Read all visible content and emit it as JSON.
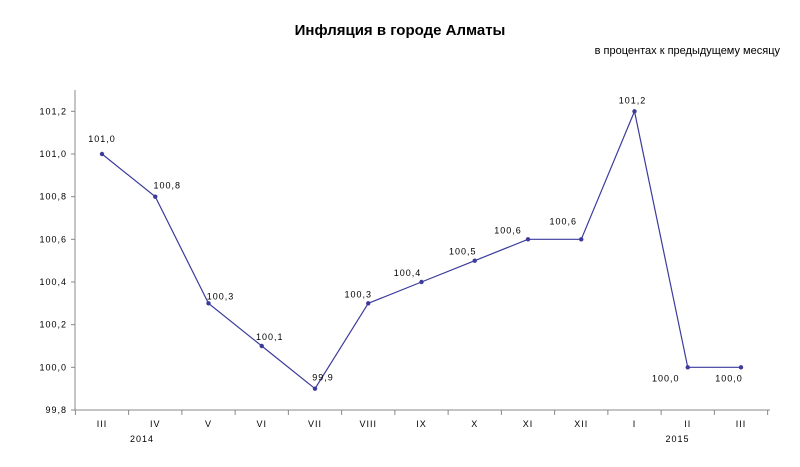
{
  "chart_data": {
    "type": "line",
    "title": "Инфляция в городе Алматы",
    "subtitle": "в процентах к предыдущему месяцу",
    "categories": [
      "III",
      "IV",
      "V",
      "VI",
      "VII",
      "VIII",
      "IX",
      "X",
      "XI",
      "XII",
      "I",
      "II",
      "III"
    ],
    "category_groups": [
      {
        "label": "2014",
        "from": 0,
        "to": 9
      },
      {
        "label": "2015",
        "from": 10,
        "to": 12
      }
    ],
    "values": [
      101.0,
      100.8,
      100.3,
      100.1,
      99.9,
      100.3,
      100.4,
      100.5,
      100.6,
      100.6,
      101.2,
      100.0,
      100.0
    ],
    "data_labels": [
      "101,0",
      "100,8",
      "100,3",
      "100,1",
      "99,9",
      "100,3",
      "100,4",
      "100,5",
      "100,6",
      "100,6",
      "101,2",
      "100,0",
      "100,0"
    ],
    "y_ticks": [
      99.8,
      100.0,
      100.2,
      100.4,
      100.6,
      100.8,
      101.0,
      101.2
    ],
    "y_tick_labels": [
      "99,8",
      "100,0",
      "100,2",
      "100,4",
      "100,6",
      "100,8",
      "101,0",
      "101,2"
    ],
    "ylim": [
      99.8,
      101.3
    ],
    "grid": false,
    "legend": "none",
    "line_color": "#3b3b9c",
    "axis_color": "#888888"
  }
}
